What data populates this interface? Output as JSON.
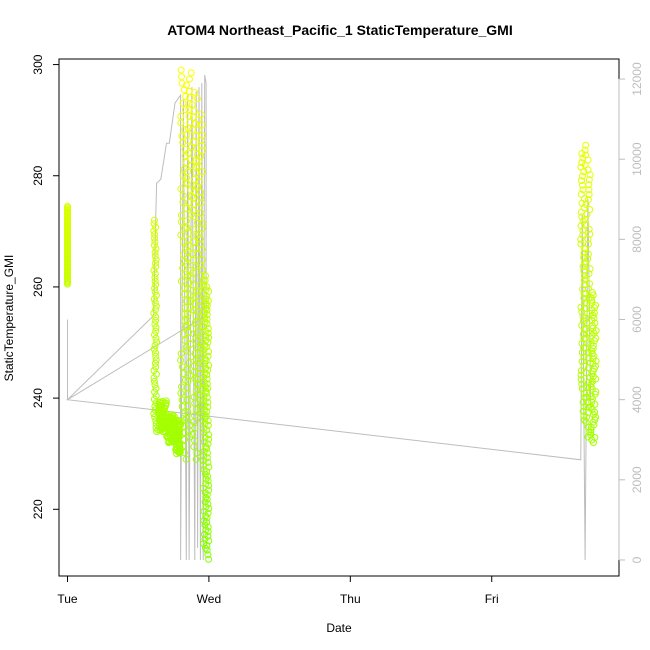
{
  "chart_data": {
    "type": "scatter",
    "title": "ATOM4 Northeast_Pacific_1 StaticTemperature_GMI",
    "xlabel": "Date",
    "ylabel": "StaticTemperature_GMI",
    "x_ticks": [
      "Tue",
      "Wed",
      "Thu",
      "Fri"
    ],
    "x_tick_values": [
      0,
      1,
      2,
      3
    ],
    "xlim": [
      -0.06,
      3.9
    ],
    "ylim": [
      208,
      301
    ],
    "y_ticks": [
      220,
      240,
      260,
      280,
      300
    ],
    "right_axis": {
      "ylim": [
        -400,
        12500
      ],
      "ticks": [
        0,
        2000,
        4000,
        6000,
        8000,
        10000,
        12000
      ],
      "color": "#bdbdbd"
    },
    "series": [
      {
        "kind": "points",
        "color_low": "#7fff00",
        "color_high": "#ffff00",
        "segments": [
          {
            "x": [
              0.0,
              0.0
            ],
            "y": [
              260.5,
              274.5
            ]
          },
          {
            "x": [
              0.61,
              0.63
            ],
            "y": [
              272,
              234
            ]
          },
          {
            "x": [
              0.64,
              0.7
            ],
            "y": [
              234,
              239.5
            ]
          },
          {
            "x": [
              0.7,
              0.76
            ],
            "y": [
              232,
              237
            ]
          },
          {
            "x": [
              0.76,
              0.8
            ],
            "y": [
              230,
              236
            ]
          },
          {
            "x": [
              0.8,
              0.84
            ],
            "y": [
              229,
              299
            ]
          },
          {
            "x": [
              0.84,
              0.88
            ],
            "y": [
              233,
              298.5
            ]
          },
          {
            "x": [
              0.88,
              0.92
            ],
            "y": [
              229,
              295
            ]
          },
          {
            "x": [
              0.92,
              0.96
            ],
            "y": [
              236,
              291
            ]
          },
          {
            "x": [
              0.96,
              0.98
            ],
            "y": [
              213,
              262
            ]
          },
          {
            "x": [
              0.98,
              1.0
            ],
            "y": [
              211,
              260
            ]
          },
          {
            "x": [
              3.63,
              3.66
            ],
            "y": [
              236,
              284
            ]
          },
          {
            "x": [
              3.66,
              3.7
            ],
            "y": [
              233,
              285.5
            ]
          },
          {
            "x": [
              3.7,
              3.74
            ],
            "y": [
              232,
              259
            ]
          }
        ]
      },
      {
        "kind": "line",
        "axis": "right",
        "color": "#bdbdbd",
        "x": [
          0.0,
          0.0,
          0.61,
          0.62,
          0.63,
          0.66,
          0.7,
          0.72,
          0.76,
          0.8,
          0.8,
          0.82,
          0.84,
          0.85,
          0.86,
          0.88,
          0.9,
          0.91,
          0.92,
          0.93,
          0.94,
          0.95,
          0.96,
          0.97,
          0.98,
          0.98,
          0.0,
          3.63,
          3.64,
          3.66,
          3.68,
          3.7
        ],
        "y": [
          6000,
          4000,
          6100,
          8000,
          9400,
          9500,
          10400,
          10400,
          11400,
          11600,
          0,
          11500,
          0,
          11600,
          0,
          11800,
          0,
          11700,
          300,
          11800,
          0,
          11900,
          0,
          12100,
          11900,
          6100,
          4000,
          2500,
          8600,
          0,
          9000,
          3800
        ]
      }
    ],
    "grid": false,
    "legend": "none"
  }
}
